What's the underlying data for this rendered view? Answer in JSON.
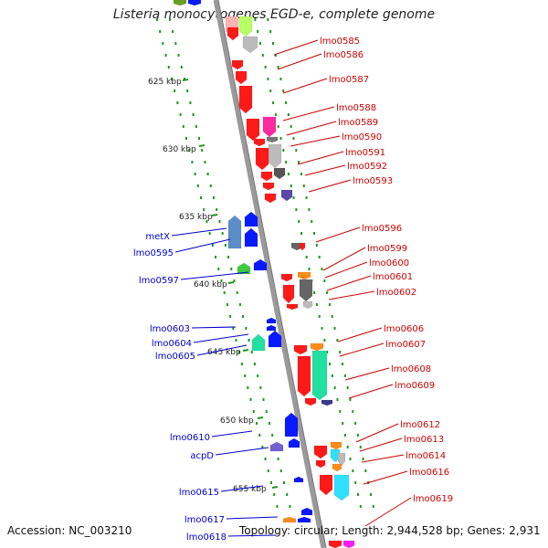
{
  "title": "Listeria monocytogenes EGD-e, complete genome",
  "accession": "Accession: NC_003210",
  "summary": "Topology: circular; Length: 2,944,528 bp; Genes: 2,931",
  "colors": {
    "backbone": "#9a9a9a",
    "dots": "#1a9a1a",
    "forward_label": "#cc0000",
    "reverse_label": "#0000cc",
    "forward_gene": "#ff1a1a",
    "reverse_gene": "#0a1aff"
  },
  "ruler": [
    {
      "label": "625 kbp"
    },
    {
      "label": "630 kbp"
    },
    {
      "label": "635 kbp"
    },
    {
      "label": "640 kbp"
    },
    {
      "label": "645 kbp"
    },
    {
      "label": "650 kbp"
    },
    {
      "label": "655 kbp"
    }
  ],
  "forward_labels": [
    "lmo0585",
    "lmo0586",
    "lmo0587",
    "lmo0588",
    "lmo0589",
    "lmo0590",
    "lmo0591",
    "lmo0592",
    "lmo0593",
    "lmo0596",
    "lmo0599",
    "lmo0600",
    "lmo0601",
    "lmo0602",
    "lmo0606",
    "lmo0607",
    "lmo0608",
    "lmo0609",
    "lmo0612",
    "lmo0613",
    "lmo0614",
    "lmo0616",
    "lmo0619"
  ],
  "reverse_labels": [
    "metX",
    "lmo0595",
    "lmo0597",
    "lmo0603",
    "lmo0604",
    "lmo0605",
    "lmo0610",
    "acpD",
    "lmo0615",
    "lmo0617",
    "lmo0618"
  ]
}
